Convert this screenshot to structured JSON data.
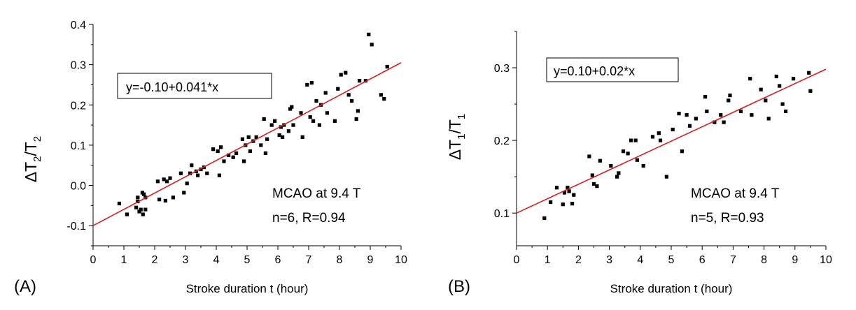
{
  "chart_data": [
    {
      "type": "scatter",
      "panel_label": "(A)",
      "xlabel": "Stroke duration t (hour)",
      "ylabel": {
        "delta": "Δ",
        "main": "T",
        "sub": "2",
        "slash": "/",
        "main2": "T",
        "sub2": "2"
      },
      "xlim": [
        0,
        10
      ],
      "ylim": [
        -0.15,
        0.4
      ],
      "xticks": [
        0,
        1,
        2,
        3,
        4,
        5,
        6,
        7,
        8,
        9,
        10
      ],
      "xtick_labels": [
        "0",
        "1",
        "2",
        "3",
        "4",
        "5",
        "6",
        "7",
        "8",
        "9",
        "10"
      ],
      "yticks": [
        -0.1,
        0.0,
        0.1,
        0.2,
        0.3,
        0.4
      ],
      "ytick_labels": [
        "-0.1",
        "0.0",
        "0.1",
        "0.2",
        "0.3",
        "0.4"
      ],
      "fit": {
        "intercept": -0.1,
        "slope": 0.0405,
        "label": "y=-0.10+0.041*x"
      },
      "annotations": [
        "MCAO at 9.4 T",
        "n=6, R=0.94"
      ],
      "colors": {
        "points": "#000000",
        "fit": "#d62020"
      },
      "points": [
        [
          0.85,
          -0.045
        ],
        [
          1.1,
          -0.072
        ],
        [
          1.4,
          -0.055
        ],
        [
          1.45,
          -0.04
        ],
        [
          1.5,
          -0.065
        ],
        [
          1.55,
          -0.06
        ],
        [
          1.6,
          -0.018
        ],
        [
          1.62,
          -0.072
        ],
        [
          1.65,
          -0.022
        ],
        [
          1.7,
          -0.06
        ],
        [
          1.45,
          -0.03
        ],
        [
          1.7,
          -0.03
        ],
        [
          2.1,
          0.01
        ],
        [
          2.15,
          -0.035
        ],
        [
          2.3,
          0.015
        ],
        [
          2.35,
          -0.038
        ],
        [
          2.4,
          0.01
        ],
        [
          2.5,
          0.018
        ],
        [
          2.6,
          -0.03
        ],
        [
          2.85,
          0.03
        ],
        [
          2.95,
          -0.018
        ],
        [
          3.05,
          0.005
        ],
        [
          3.15,
          0.03
        ],
        [
          3.2,
          0.05
        ],
        [
          3.35,
          0.035
        ],
        [
          3.4,
          0.025
        ],
        [
          3.5,
          0.04
        ],
        [
          3.6,
          0.045
        ],
        [
          3.7,
          0.03
        ],
        [
          3.9,
          0.09
        ],
        [
          4.05,
          0.085
        ],
        [
          4.1,
          0.025
        ],
        [
          4.15,
          0.095
        ],
        [
          4.25,
          0.06
        ],
        [
          4.4,
          0.075
        ],
        [
          4.55,
          0.07
        ],
        [
          4.65,
          0.08
        ],
        [
          4.85,
          0.115
        ],
        [
          4.9,
          0.06
        ],
        [
          4.95,
          0.1
        ],
        [
          5.05,
          0.12
        ],
        [
          5.1,
          0.085
        ],
        [
          5.2,
          0.11
        ],
        [
          5.3,
          0.12
        ],
        [
          5.45,
          0.1
        ],
        [
          5.55,
          0.165
        ],
        [
          5.6,
          0.08
        ],
        [
          5.65,
          0.115
        ],
        [
          5.8,
          0.15
        ],
        [
          5.9,
          0.16
        ],
        [
          6.05,
          0.125
        ],
        [
          6.1,
          0.145
        ],
        [
          6.15,
          0.12
        ],
        [
          6.2,
          0.15
        ],
        [
          6.35,
          0.135
        ],
        [
          6.4,
          0.19
        ],
        [
          6.45,
          0.195
        ],
        [
          6.5,
          0.15
        ],
        [
          6.75,
          0.18
        ],
        [
          6.8,
          0.12
        ],
        [
          6.95,
          0.25
        ],
        [
          7.05,
          0.17
        ],
        [
          7.1,
          0.255
        ],
        [
          7.15,
          0.16
        ],
        [
          7.25,
          0.21
        ],
        [
          7.35,
          0.15
        ],
        [
          7.4,
          0.2
        ],
        [
          7.55,
          0.23
        ],
        [
          7.6,
          0.18
        ],
        [
          7.85,
          0.16
        ],
        [
          7.95,
          0.24
        ],
        [
          8.05,
          0.275
        ],
        [
          8.2,
          0.28
        ],
        [
          8.3,
          0.225
        ],
        [
          8.4,
          0.21
        ],
        [
          8.55,
          0.165
        ],
        [
          8.6,
          0.185
        ],
        [
          8.65,
          0.26
        ],
        [
          8.85,
          0.26
        ],
        [
          8.95,
          0.375
        ],
        [
          9.05,
          0.35
        ],
        [
          9.35,
          0.225
        ],
        [
          9.45,
          0.215
        ],
        [
          9.55,
          0.295
        ]
      ]
    },
    {
      "type": "scatter",
      "panel_label": "(B)",
      "xlabel": "Stroke duration t (hour)",
      "ylabel": {
        "delta": "Δ",
        "main": "T",
        "sub": "1",
        "slash": "/",
        "main2": "T",
        "sub2": "1"
      },
      "xlim": [
        0,
        10
      ],
      "ylim": [
        0.055,
        0.35
      ],
      "xticks": [
        0,
        1,
        2,
        3,
        4,
        5,
        6,
        7,
        8,
        9,
        10
      ],
      "xtick_labels": [
        "0",
        "1",
        "2",
        "3",
        "4",
        "5",
        "6",
        "7",
        "8",
        "9",
        "10"
      ],
      "yticks": [
        0.1,
        0.2,
        0.3
      ],
      "ytick_labels": [
        "0.1",
        "0.2",
        "0.3"
      ],
      "fit": {
        "intercept": 0.1,
        "slope": 0.0198,
        "label": "y=0.10+0.02*x"
      },
      "annotations": [
        "MCAO at 9.4 T",
        "n=5, R=0.93"
      ],
      "colors": {
        "points": "#000000",
        "fit": "#d62020"
      },
      "points": [
        [
          0.9,
          0.093
        ],
        [
          1.1,
          0.115
        ],
        [
          1.3,
          0.135
        ],
        [
          1.5,
          0.112
        ],
        [
          1.55,
          0.128
        ],
        [
          1.65,
          0.135
        ],
        [
          1.7,
          0.13
        ],
        [
          1.8,
          0.113
        ],
        [
          1.85,
          0.125
        ],
        [
          2.35,
          0.178
        ],
        [
          2.45,
          0.152
        ],
        [
          2.5,
          0.14
        ],
        [
          2.6,
          0.137
        ],
        [
          2.7,
          0.172
        ],
        [
          3.05,
          0.165
        ],
        [
          3.25,
          0.15
        ],
        [
          3.3,
          0.155
        ],
        [
          3.45,
          0.185
        ],
        [
          3.6,
          0.182
        ],
        [
          3.7,
          0.2
        ],
        [
          3.85,
          0.2
        ],
        [
          3.9,
          0.173
        ],
        [
          4.1,
          0.165
        ],
        [
          4.4,
          0.205
        ],
        [
          4.6,
          0.21
        ],
        [
          4.65,
          0.2
        ],
        [
          4.85,
          0.15
        ],
        [
          5.05,
          0.215
        ],
        [
          5.25,
          0.237
        ],
        [
          5.35,
          0.185
        ],
        [
          5.5,
          0.235
        ],
        [
          5.6,
          0.22
        ],
        [
          5.8,
          0.23
        ],
        [
          6.1,
          0.26
        ],
        [
          6.15,
          0.24
        ],
        [
          6.4,
          0.225
        ],
        [
          6.6,
          0.235
        ],
        [
          6.7,
          0.225
        ],
        [
          6.85,
          0.255
        ],
        [
          6.9,
          0.262
        ],
        [
          7.25,
          0.24
        ],
        [
          7.55,
          0.285
        ],
        [
          7.6,
          0.235
        ],
        [
          7.9,
          0.27
        ],
        [
          8.05,
          0.255
        ],
        [
          8.15,
          0.23
        ],
        [
          8.4,
          0.288
        ],
        [
          8.5,
          0.275
        ],
        [
          8.6,
          0.25
        ],
        [
          8.7,
          0.24
        ],
        [
          8.95,
          0.285
        ],
        [
          9.45,
          0.293
        ],
        [
          9.5,
          0.268
        ]
      ]
    }
  ]
}
